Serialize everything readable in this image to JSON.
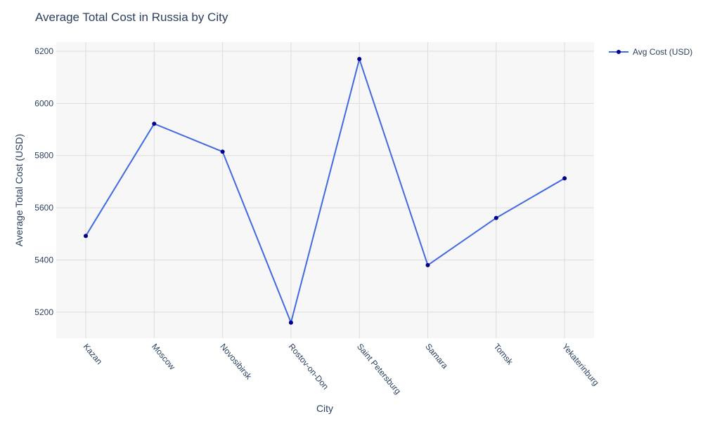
{
  "chart_data": {
    "type": "line",
    "title": "Average Total Cost in Russia by City",
    "xlabel": "City",
    "ylabel": "Average Total Cost (USD)",
    "categories": [
      "Kazan",
      "Moscow",
      "Novosibirsk",
      "Rostov-on-Don",
      "Saint Petersburg",
      "Samara",
      "Tomsk",
      "Yekaterinburg"
    ],
    "series": [
      {
        "name": "Avg Cost (USD)",
        "values": [
          5492,
          5922,
          5815,
          5160,
          6170,
          5380,
          5561,
          5713
        ]
      }
    ],
    "ylim": [
      5100,
      6235
    ],
    "yticks": [
      5200,
      5400,
      5600,
      5800,
      6000,
      6200
    ],
    "grid": true,
    "legend_position": "top-right",
    "colors": {
      "line": "#4169e1",
      "marker": "#00008b",
      "plot_bg": "#f7f7f7",
      "grid": "#dddddd"
    }
  }
}
